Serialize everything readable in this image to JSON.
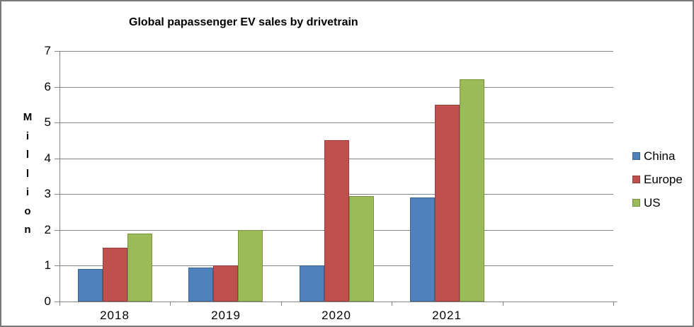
{
  "frame": {
    "background": "#ffffff",
    "border_color": "#7a7a7a"
  },
  "chart_data": {
    "type": "bar",
    "title": "Global papassenger EV sales by drivetrain",
    "xlabel": "",
    "ylabel": "Million",
    "categories": [
      "2018",
      "2019",
      "2020",
      "2021"
    ],
    "series": [
      {
        "name": "China",
        "color": "#4F81BD",
        "border_color": "#3A648F",
        "values": [
          0.9,
          0.95,
          1.0,
          2.9
        ]
      },
      {
        "name": "Europe",
        "color": "#C0504D",
        "border_color": "#953D3B",
        "values": [
          1.5,
          1.0,
          4.5,
          5.5
        ]
      },
      {
        "name": "US",
        "color": "#9BBB59",
        "border_color": "#79933F",
        "values": [
          1.9,
          2.0,
          2.95,
          6.2
        ]
      }
    ],
    "ylim": [
      0,
      7
    ],
    "ytick_step": 1,
    "grid": true,
    "legend_position": "right",
    "x_axis_slots": 5,
    "gridline_color": "#848484",
    "axis_color": "#848484",
    "text_color": "#000000"
  }
}
